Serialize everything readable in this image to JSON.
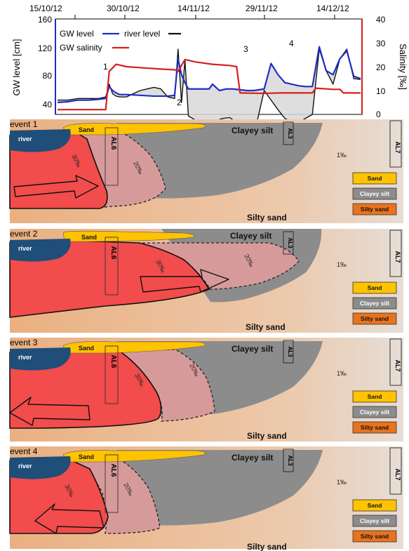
{
  "chart_data": {
    "type": "line",
    "x_dates": [
      "15/10/12",
      "30/10/12",
      "14/11/12",
      "29/11/12",
      "14/12/12"
    ],
    "ylabel_left": "GW level [cm]",
    "ylabel_right": "Salinity [‰]",
    "ylim_left": [
      40,
      160
    ],
    "yticks_left": [
      "160",
      "120",
      "80",
      "40"
    ],
    "ylim_right": [
      0,
      40
    ],
    "yticks_right": [
      "40",
      "30",
      "20",
      "10",
      "0"
    ],
    "legend": {
      "gw_level": "GW level",
      "river_level": "river level",
      "gw_salinity": "GW salinity"
    },
    "event_markers": [
      "1",
      "2",
      "3",
      "4"
    ],
    "colors": {
      "gw_level": "#1f2fbf",
      "river_level": "#111111",
      "gw_salinity": "#d81e1e"
    },
    "series": [
      {
        "name": "GW level",
        "x_days": [
          0,
          3,
          6,
          9,
          12,
          14,
          15,
          16,
          17,
          18,
          20,
          24,
          28,
          32,
          34,
          35,
          36,
          37,
          38,
          40,
          42,
          44,
          45,
          47,
          49,
          51,
          53,
          55,
          57,
          60,
          62,
          64,
          66,
          68,
          70,
          72,
          74,
          76,
          78,
          80,
          82,
          84,
          86,
          88
        ],
        "values": [
          55,
          56,
          58,
          58,
          59,
          60,
          75,
          70,
          67,
          65,
          65,
          64,
          63,
          63,
          64,
          110,
          90,
          80,
          72,
          72,
          72,
          72,
          78,
          70,
          72,
          72,
          71,
          70,
          70,
          72,
          104,
          90,
          80,
          78,
          76,
          75,
          75,
          125,
          95,
          90,
          110,
          120,
          88,
          85
        ]
      },
      {
        "name": "river level",
        "x_days": [
          0,
          3,
          6,
          9,
          12,
          14,
          15,
          16,
          17,
          18,
          20,
          24,
          28,
          30,
          32,
          34,
          35,
          36,
          37,
          38,
          40,
          43,
          46,
          48,
          50,
          52,
          54,
          56,
          58,
          60,
          62,
          64,
          66,
          68,
          70,
          72,
          74,
          76,
          78,
          80,
          82,
          84,
          86,
          88
        ],
        "values": [
          58,
          58,
          60,
          60,
          60,
          62,
          78,
          66,
          63,
          62,
          62,
          70,
          74,
          72,
          62,
          60,
          122,
          55,
          108,
          38,
          33,
          30,
          32,
          35,
          36,
          30,
          29,
          30,
          32,
          70,
          58,
          46,
          35,
          30,
          30,
          35,
          40,
          122,
          95,
          78,
          110,
          122,
          85,
          84
        ]
      },
      {
        "name": "GW salinity",
        "x_days": [
          0,
          14,
          15,
          17,
          20,
          25,
          30,
          34,
          35,
          37,
          40,
          45,
          50,
          52,
          53,
          60,
          65,
          70,
          74,
          75,
          80,
          82,
          83,
          88
        ],
        "values": [
          2,
          2,
          18,
          21,
          20,
          19.5,
          19,
          18.7,
          18,
          23,
          22,
          21,
          20.5,
          20,
          9,
          8.8,
          9,
          9,
          9,
          11,
          10.5,
          10.5,
          9,
          9
        ]
      }
    ]
  },
  "events": [
    {
      "title": "event 1",
      "salinity_30": "30‰",
      "salinity_20": "20‰"
    },
    {
      "title": "event 2",
      "salinity_30": "30‰",
      "salinity_20": "20‰"
    },
    {
      "title": "event 3",
      "salinity_30": "30‰",
      "salinity_20": "20‰"
    },
    {
      "title": "event 4",
      "salinity_30": "30‰",
      "salinity_20": "20‰"
    }
  ],
  "section_labels": {
    "river": "river",
    "sand_top": "Sand",
    "clayey_silt": "Clayey silt",
    "silty_sand": "Silty sand",
    "background_salinity": "1‰",
    "wells": [
      "AL6",
      "AL3",
      "AL7"
    ]
  },
  "section_legend": [
    "Sand",
    "Clayey silt",
    "Silty sand"
  ],
  "section_colors": {
    "sand": "#ffc300",
    "clay": "#8c8c8c",
    "silty_sand_bg": "#e9b48a",
    "river": "#1f4e79",
    "salt_high": "#f24c4c",
    "salt_mid": "#d79a9a",
    "legend_silty": "#e8731e"
  }
}
